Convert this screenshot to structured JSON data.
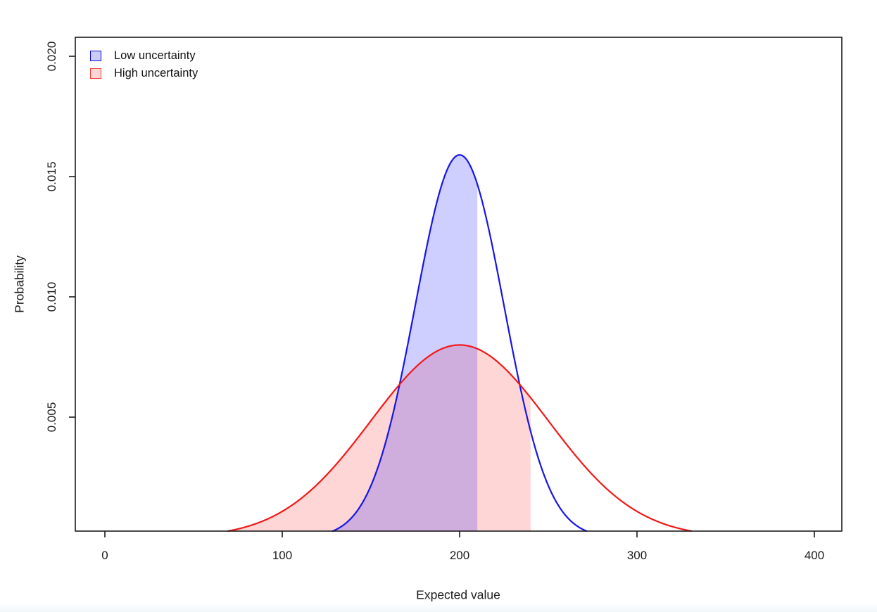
{
  "figure": {
    "xlabel": "Expected value",
    "ylabel": "Probability",
    "x_tick_labels": [
      "0",
      "100",
      "200",
      "300",
      "400"
    ],
    "y_tick_labels": [
      "0.005",
      "0.010",
      "0.015",
      "0.020"
    ],
    "legend": [
      {
        "label": "Low uncertainty",
        "swatch_fill": "#ccccfa",
        "swatch_border": "#0d0dcc"
      },
      {
        "label": "High uncertainty",
        "swatch_fill": "#fdd6d6",
        "swatch_border": "#fa3c32"
      }
    ]
  },
  "chart_data": {
    "type": "line",
    "title": "",
    "xlabel": "Expected value",
    "ylabel": "Probability",
    "xlim": [
      0,
      400
    ],
    "ylim": [
      0,
      0.0208
    ],
    "x_ticks": [
      0,
      100,
      200,
      300,
      400
    ],
    "y_ticks": [
      0.005,
      0.01,
      0.015,
      0.02
    ],
    "grid": false,
    "legend_position": "top-left",
    "series": [
      {
        "name": "Low uncertainty",
        "distribution": "normal",
        "mean": 200,
        "sd": 25,
        "peak_probability": 0.0159,
        "curve_x_range": [
          128.4,
          271.6
        ],
        "shaded_x_range": [
          128.4,
          210
        ],
        "line_color": "#1616e8",
        "fill_color": "#0000ff",
        "fill_opacity": 0.19
      },
      {
        "name": "High uncertainty",
        "distribution": "normal",
        "mean": 200,
        "sd": 50,
        "peak_probability": 0.008,
        "curve_x_range": [
          69.4,
          330.6
        ],
        "shaded_x_range": [
          69.4,
          240
        ],
        "line_color": "#f21818",
        "fill_color": "#ff0000",
        "fill_opacity": 0.16
      }
    ]
  }
}
